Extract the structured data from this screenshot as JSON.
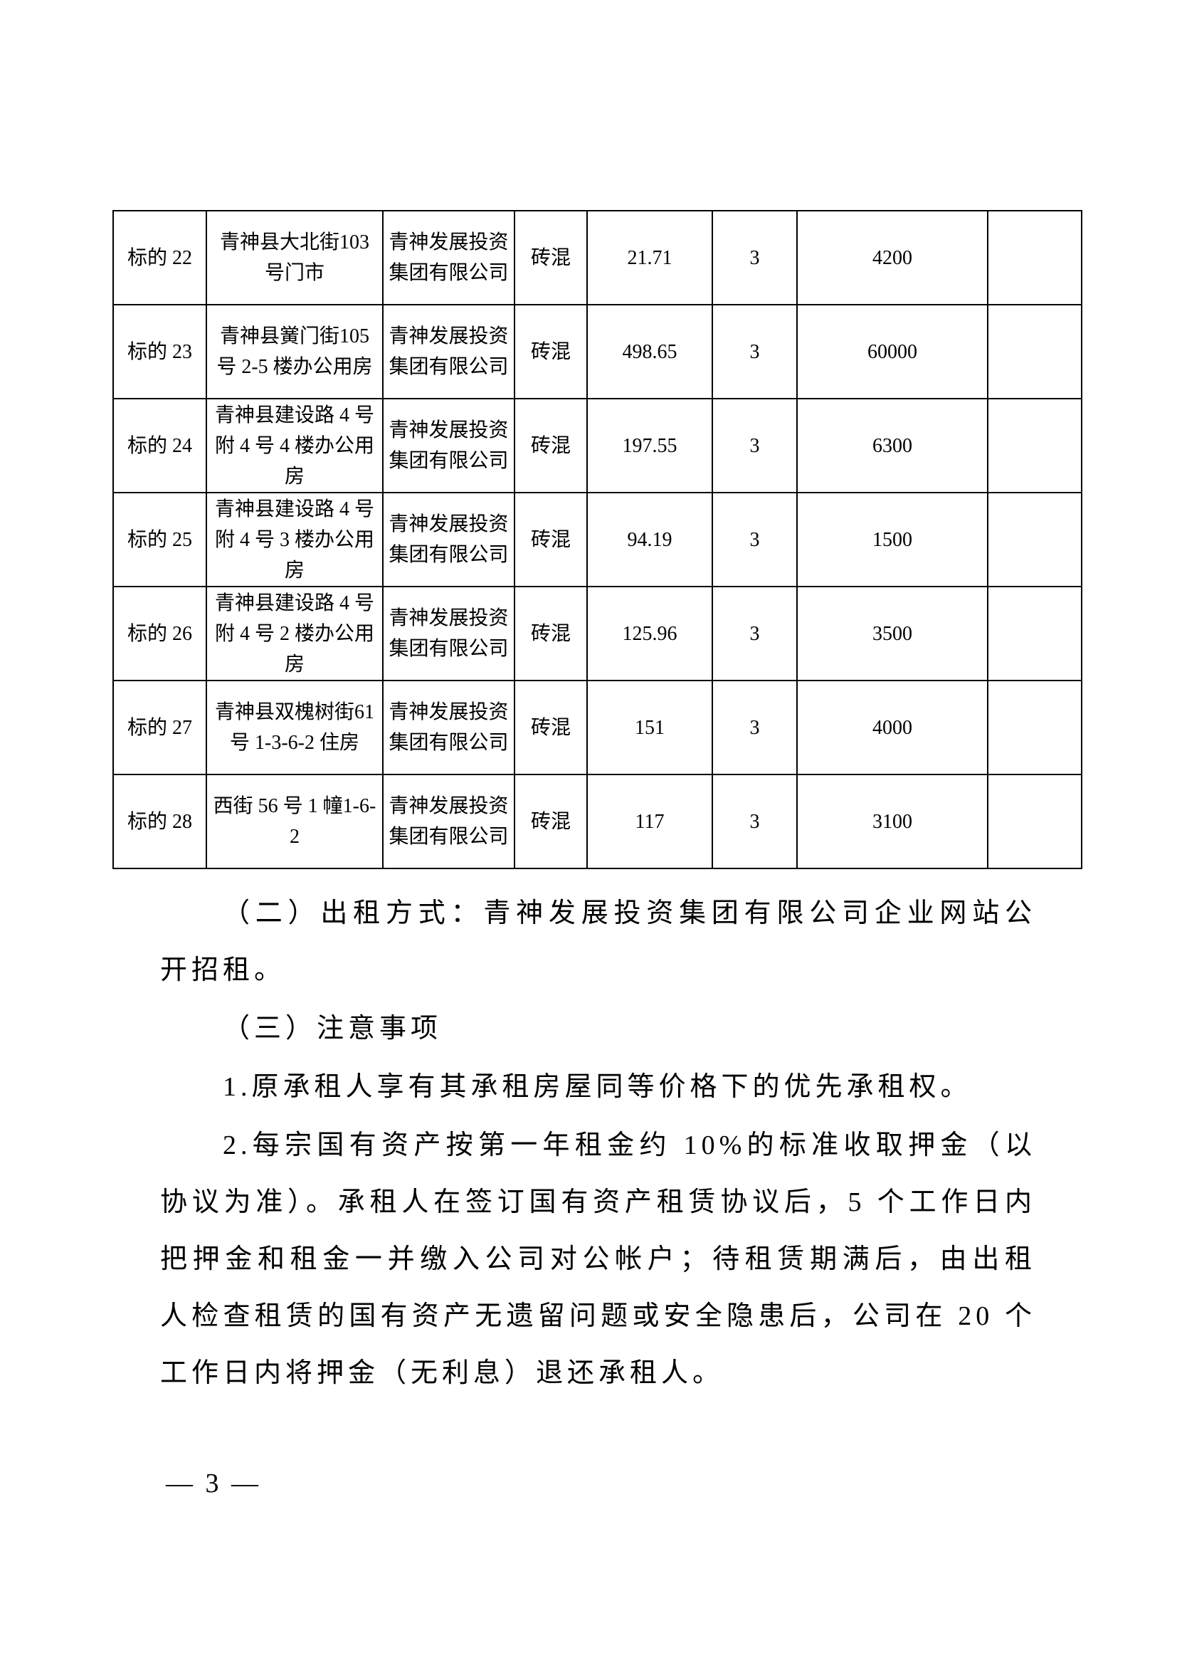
{
  "table": {
    "rows": [
      {
        "id": "标的 22",
        "location": "青神县大北街103 号门市",
        "owner": "青神发展投资集团有限公司",
        "structure": "砖混",
        "area": "21.71",
        "term": "3",
        "price": "4200",
        "note": ""
      },
      {
        "id": "标的 23",
        "location": "青神县黉门街105 号 2-5 楼办公用房",
        "owner": "青神发展投资集团有限公司",
        "structure": "砖混",
        "area": "498.65",
        "term": "3",
        "price": "60000",
        "note": ""
      },
      {
        "id": "标的 24",
        "location": "青神县建设路 4 号附 4 号 4 楼办公用房",
        "owner": "青神发展投资集团有限公司",
        "structure": "砖混",
        "area": "197.55",
        "term": "3",
        "price": "6300",
        "note": ""
      },
      {
        "id": "标的 25",
        "location": "青神县建设路 4 号附 4 号 3 楼办公用房",
        "owner": "青神发展投资集团有限公司",
        "structure": "砖混",
        "area": "94.19",
        "term": "3",
        "price": "1500",
        "note": ""
      },
      {
        "id": "标的 26",
        "location": "青神县建设路 4 号附 4 号 2 楼办公用房",
        "owner": "青神发展投资集团有限公司",
        "structure": "砖混",
        "area": "125.96",
        "term": "3",
        "price": "3500",
        "note": ""
      },
      {
        "id": "标的 27",
        "location": "青神县双槐树街61 号 1-3-6-2 住房",
        "owner": "青神发展投资集团有限公司",
        "structure": "砖混",
        "area": "151",
        "term": "3",
        "price": "4000",
        "note": ""
      },
      {
        "id": "标的 28",
        "location": "西街 56 号 1 幢1-6-2",
        "owner": "青神发展投资集团有限公司",
        "structure": "砖混",
        "area": "117",
        "term": "3",
        "price": "3100",
        "note": ""
      }
    ]
  },
  "body": {
    "p1": "（二）出租方式：青神发展投资集团有限公司企业网站公开招租。",
    "p2": "（三）注意事项",
    "p3": "1.原承租人享有其承租房屋同等价格下的优先承租权。",
    "p4": "2.每宗国有资产按第一年租金约 10%的标准收取押金（以协议为准）。承租人在签订国有资产租赁协议后，5 个工作日内把押金和租金一并缴入公司对公帐户；待租赁期满后，由出租人检查租赁的国有资产无遗留问题或安全隐患后，公司在 20 个工作日内将押金（无利息）退还承租人。"
  },
  "footer": {
    "page_number": "— 3 —"
  }
}
